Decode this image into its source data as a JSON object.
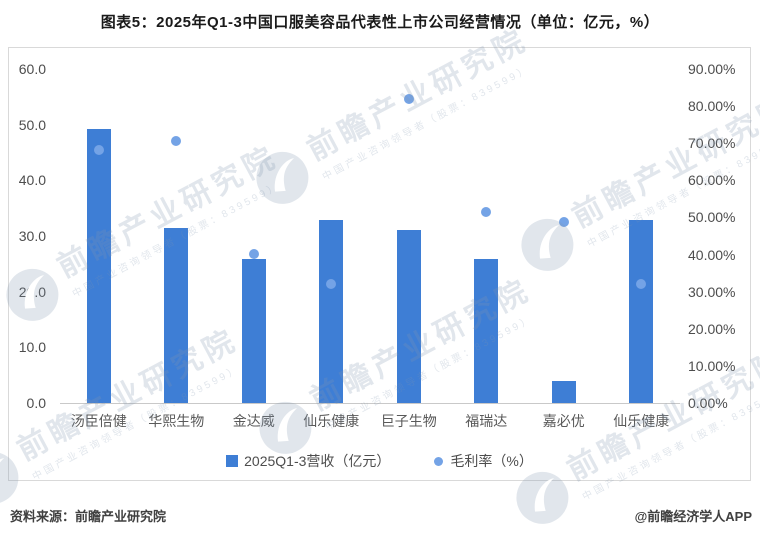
{
  "page": {
    "title": "图表5：2025年Q1-3中国口服美容品代表性上市公司经营情况（单位：亿元，%）"
  },
  "footer": {
    "source": "资料来源：前瞻产业研究院",
    "credit": "@前瞻经济学人APP"
  },
  "watermark": {
    "brand": "前瞻产业研究院",
    "tagline": "中国产业咨询领导者（股票：839599）",
    "logo": "qianzhan-logo"
  },
  "colors": {
    "bar": "#3e7ed5",
    "dot": "#74a3e6",
    "axis_text": "#4d4d4d",
    "category_text": "#595959",
    "border": "#d9d9d9",
    "baseline": "#c9c9c9",
    "title_text": "#1a1a1a"
  },
  "chart_data": {
    "type": "bar",
    "title": "图表5：2025年Q1-3中国口服美容品代表性上市公司经营情况（单位：亿元，%）",
    "categories": [
      "汤臣倍健",
      "华熙生物",
      "金达威",
      "仙乐健康",
      "巨子生物",
      "福瑞达",
      "嘉必优",
      "仙乐健康"
    ],
    "series": [
      {
        "name": "2025Q1-3营收（亿元）",
        "type": "bar",
        "axis": "left",
        "values": [
          49.2,
          31.5,
          25.8,
          32.9,
          31.1,
          25.9,
          3.9,
          32.8
        ]
      },
      {
        "name": "毛利率（%）",
        "type": "scatter",
        "axis": "right",
        "values": [
          68.3,
          70.7,
          40.2,
          32.0,
          81.8,
          51.4,
          48.7,
          32.1
        ]
      }
    ],
    "left_axis": {
      "min": 0,
      "max": 60,
      "step": 10,
      "ticks": [
        "0.0",
        "10.0",
        "20.0",
        "30.0",
        "40.0",
        "50.0",
        "60.0"
      ]
    },
    "right_axis": {
      "min": 0,
      "max": 90,
      "step": 10,
      "ticks": [
        "0.00%",
        "10.00%",
        "20.00%",
        "30.00%",
        "40.00%",
        "50.00%",
        "60.00%",
        "70.00%",
        "80.00%",
        "90.00%"
      ]
    },
    "grid": false,
    "legend_position": "bottom",
    "xlabel": "",
    "ylabel": ""
  }
}
